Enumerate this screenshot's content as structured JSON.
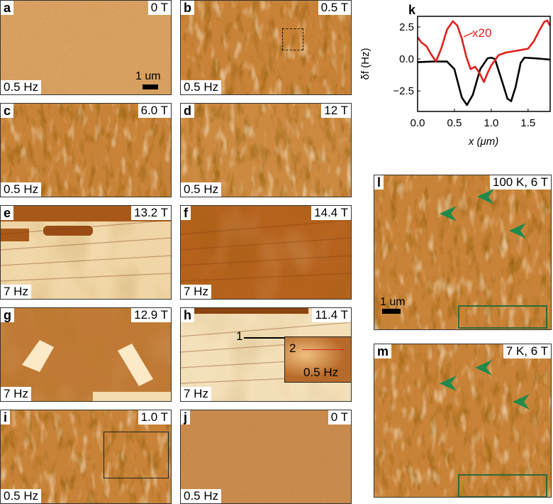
{
  "panels": [
    {
      "id": "a",
      "field": "0 T",
      "freq": "0.5 Hz",
      "scale": "1 um",
      "base": "#d8a060",
      "style": "fine"
    },
    {
      "id": "b",
      "field": "0.5 T",
      "freq": "0.5 Hz",
      "base": "#c98338",
      "style": "domain"
    },
    {
      "id": "c",
      "field": "6.0 T",
      "freq": "0.5 Hz",
      "base": "#c98338",
      "style": "domain"
    },
    {
      "id": "d",
      "field": "12 T",
      "freq": "0.5 Hz",
      "base": "#cc8a40",
      "style": "domain"
    },
    {
      "id": "e",
      "field": "13.2 T",
      "freq": "7 Hz",
      "base": "#f0d6a6",
      "style": "smooth"
    },
    {
      "id": "f",
      "field": "14.4 T",
      "freq": "7 Hz",
      "base": "#b5621c",
      "style": "smooth"
    },
    {
      "id": "g",
      "field": "12.9 T",
      "freq": "7 Hz",
      "base": "#c07a35",
      "style": "smooth"
    },
    {
      "id": "h",
      "field": "11.4 T",
      "freq": "7 Hz",
      "base": "#f3dfb8",
      "style": "smooth",
      "inset_freq": "0.5 Hz",
      "marker1": "1",
      "marker2": "2"
    },
    {
      "id": "i",
      "field": "1.0 T",
      "freq": "0.5 Hz",
      "base": "#c98338",
      "style": "domain"
    },
    {
      "id": "j",
      "field": "0 T",
      "freq": "0.5 Hz",
      "base": "#c98a4c",
      "style": "fine"
    },
    {
      "id": "l",
      "field": "100 K, 6 T",
      "freq": "",
      "scale": "1 um",
      "base": "#c98338",
      "style": "domain"
    },
    {
      "id": "m",
      "field": "7 K, 6 T",
      "freq": "",
      "base": "#c98338",
      "style": "domain"
    }
  ],
  "arrow_color": "#1f8a4c",
  "box_color": "#2d6a3a",
  "chart_data": {
    "type": "line",
    "panel_label": "k",
    "xlabel": "x (μm)",
    "ylabel": "δf (Hz)",
    "xlim": [
      0,
      1.8
    ],
    "ylim": [
      -4.1,
      3.33
    ],
    "xticks": [
      "0.0",
      "0.5",
      "1.0",
      "1.5"
    ],
    "yticks": [
      "2.5",
      "0.0",
      "−2.5"
    ],
    "annotation": "x20",
    "series": [
      {
        "color": "#000000",
        "x": [
          0,
          0.2,
          0.4,
          0.5,
          0.6,
          0.67,
          0.75,
          0.85,
          0.95,
          1.0,
          1.05,
          1.15,
          1.22,
          1.27,
          1.33,
          1.4,
          1.45,
          1.6,
          1.8
        ],
        "y": [
          -0.25,
          -0.2,
          -0.2,
          -0.8,
          -3.0,
          -3.6,
          -2.8,
          -0.8,
          0.05,
          0.1,
          0.0,
          -1.8,
          -3.1,
          -3.3,
          -2.2,
          -0.3,
          0.1,
          0.05,
          -0.05
        ]
      },
      {
        "color": "#e0201c",
        "x": [
          0,
          0.05,
          0.12,
          0.18,
          0.25,
          0.32,
          0.4,
          0.48,
          0.54,
          0.6,
          0.66,
          0.72,
          0.78,
          0.84,
          0.9,
          0.95,
          1.0,
          1.1,
          1.2,
          1.3,
          1.4,
          1.5,
          1.58,
          1.65,
          1.72,
          1.76,
          1.8
        ],
        "y": [
          1.7,
          1.3,
          1.0,
          0.4,
          -0.2,
          0.8,
          2.3,
          2.95,
          2.6,
          1.6,
          0.2,
          -0.8,
          -0.6,
          -1.1,
          -1.8,
          -1.1,
          -0.5,
          0.3,
          0.5,
          0.6,
          0.7,
          0.8,
          1.4,
          2.2,
          2.9,
          3.0,
          2.6
        ]
      }
    ]
  }
}
